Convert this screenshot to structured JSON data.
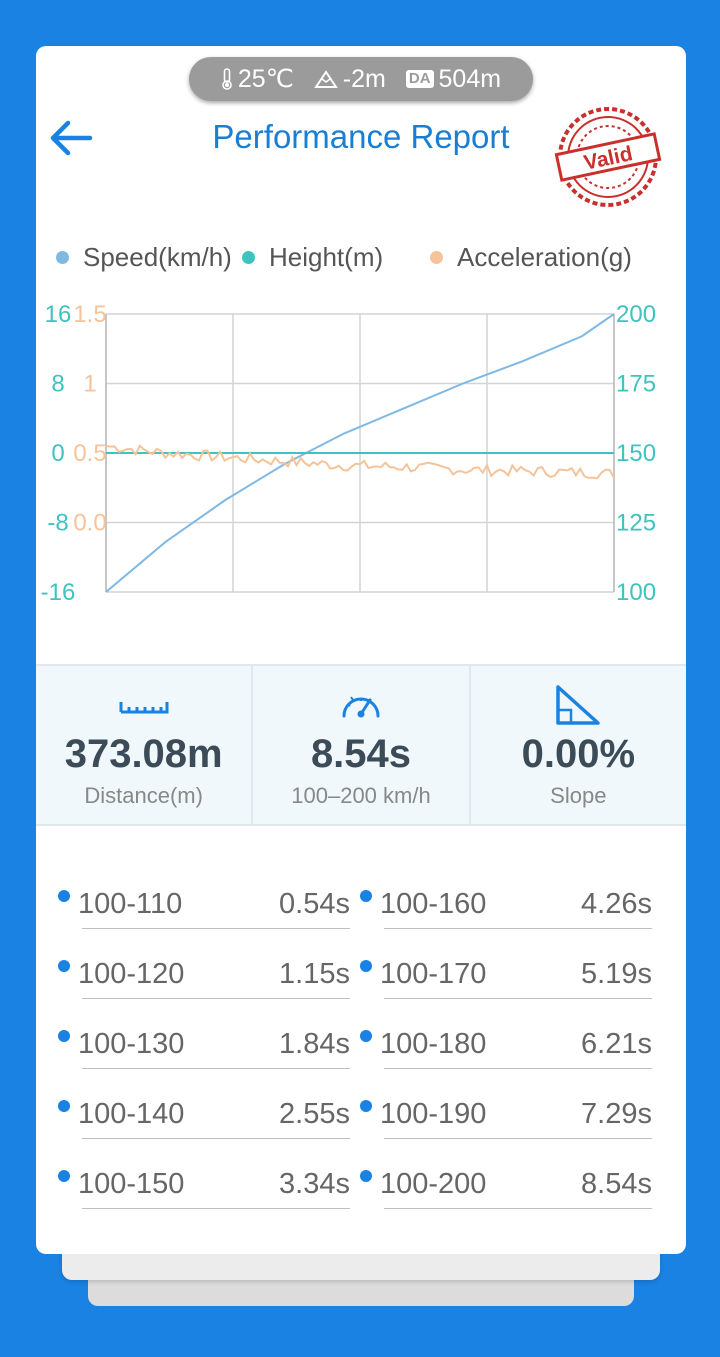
{
  "env": {
    "temperature": "25℃",
    "altitude": "-2m",
    "da_label": "DA",
    "density_altitude": "504m"
  },
  "header": {
    "title": "Performance Report",
    "stamp_text": "Valid"
  },
  "legend": {
    "speed": "Speed(km/h)",
    "height": "Height(m)",
    "acceleration": "Acceleration(g)"
  },
  "colors": {
    "speed": "#7fb9e3",
    "height": "#3ec3bf",
    "acceleration": "#f5c39a",
    "accent": "#1a82e3"
  },
  "chart_data": {
    "type": "line",
    "x": [
      0,
      1,
      2,
      3,
      4,
      5,
      6,
      7,
      8,
      8.54
    ],
    "series": [
      {
        "name": "Speed(km/h)",
        "axis": "right",
        "values": [
          100,
          118,
          133,
          146,
          157,
          166,
          175,
          183,
          192,
          200
        ]
      },
      {
        "name": "Height(m)",
        "axis": "left",
        "values": [
          0,
          0,
          0,
          0,
          0,
          0,
          0,
          0,
          0,
          0
        ]
      },
      {
        "name": "Acceleration(g)",
        "axis": "left2",
        "values": [
          0.55,
          0.5,
          0.47,
          0.44,
          0.41,
          0.4,
          0.38,
          0.37,
          0.36,
          0.35
        ]
      }
    ],
    "left_axis_ticks": [
      "16",
      "8",
      "0",
      "-8",
      "-16"
    ],
    "left2_axis_ticks": [
      "1.5",
      "1",
      "0.5",
      "0.0"
    ],
    "right_axis_ticks": [
      "200",
      "175",
      "150",
      "125",
      "100"
    ],
    "ylim_right": [
      100,
      200
    ],
    "ylim_left": [
      -16,
      16
    ],
    "ylim_left2": [
      -0.5,
      1.5
    ],
    "grid": true
  },
  "stats": {
    "distance": {
      "value": "373.08m",
      "label": "Distance(m)",
      "icon": "ruler-icon"
    },
    "time": {
      "value": "8.54s",
      "label": "100–200 km/h",
      "icon": "speedometer-icon"
    },
    "slope": {
      "value": "0.00%",
      "label": "Slope",
      "icon": "slope-icon"
    }
  },
  "splits": [
    {
      "range": "100-110",
      "time": "0.54s"
    },
    {
      "range": "100-120",
      "time": "1.15s"
    },
    {
      "range": "100-130",
      "time": "1.84s"
    },
    {
      "range": "100-140",
      "time": "2.55s"
    },
    {
      "range": "100-150",
      "time": "3.34s"
    },
    {
      "range": "100-160",
      "time": "4.26s"
    },
    {
      "range": "100-170",
      "time": "5.19s"
    },
    {
      "range": "100-180",
      "time": "6.21s"
    },
    {
      "range": "100-190",
      "time": "7.29s"
    },
    {
      "range": "100-200",
      "time": "8.54s"
    }
  ]
}
